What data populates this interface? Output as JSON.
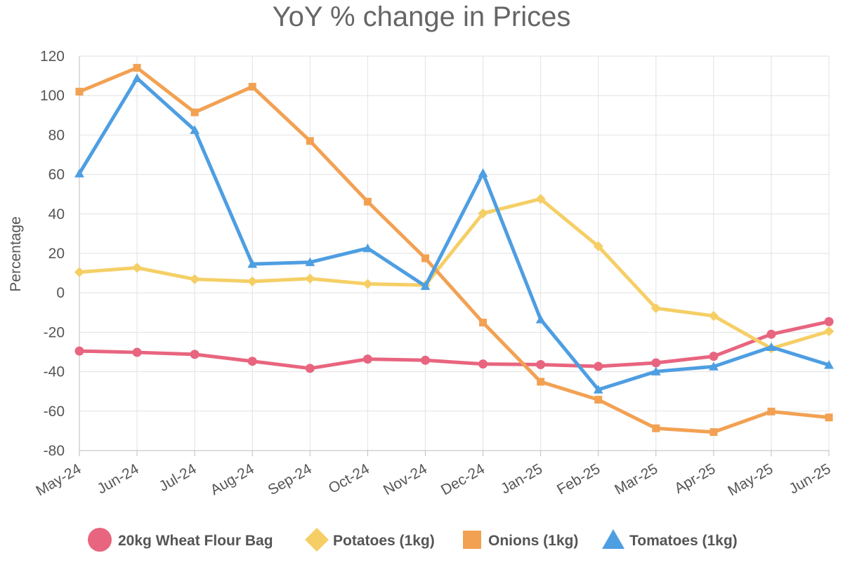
{
  "chart_data": {
    "type": "line",
    "title": "YoY % change in Prices",
    "xlabel": "",
    "ylabel": "Percentage",
    "ylim": [
      -80,
      120
    ],
    "yticks": [
      120,
      100,
      80,
      60,
      40,
      20,
      0,
      -20,
      -40,
      -60,
      -80
    ],
    "grid": true,
    "legend_position": "bottom",
    "categories": [
      "May-24",
      "Jun-24",
      "Jul-24",
      "Aug-24",
      "Sep-24",
      "Oct-24",
      "Nov-24",
      "Dec-24",
      "Jan-25",
      "Feb-25",
      "Mar-25",
      "Apr-25",
      "May-25",
      "Jun-25"
    ],
    "series": [
      {
        "name": "20kg Wheat Flour Bag",
        "color": "#e8657f",
        "marker": "circle",
        "values": [
          -29.5,
          -30.2,
          -31.2,
          -34.7,
          -38.3,
          -33.6,
          -34.2,
          -36.1,
          -36.4,
          -37.3,
          -35.5,
          -32.2,
          -21.0,
          -14.6
        ]
      },
      {
        "name": "Potatoes (1kg)",
        "color": "#f5cf66",
        "marker": "diamond",
        "values": [
          10.5,
          12.7,
          6.9,
          5.8,
          7.2,
          4.5,
          3.9,
          40.3,
          47.6,
          23.6,
          -7.8,
          -11.7,
          -28.2,
          -19.5
        ]
      },
      {
        "name": "Onions (1kg)",
        "color": "#f2a153",
        "marker": "square",
        "values": [
          102.0,
          114.1,
          91.5,
          104.5,
          77.0,
          46.2,
          17.5,
          -15.1,
          -45.1,
          -54.2,
          -68.7,
          -70.6,
          -60.2,
          -63.2
        ]
      },
      {
        "name": "Tomatoes (1kg)",
        "color": "#4e9ee2",
        "marker": "triangle",
        "values": [
          60.5,
          108.8,
          82.5,
          14.6,
          15.5,
          22.6,
          3.4,
          60.7,
          -13.5,
          -49.1,
          -39.9,
          -37.4,
          -27.5,
          -36.6
        ]
      }
    ]
  }
}
